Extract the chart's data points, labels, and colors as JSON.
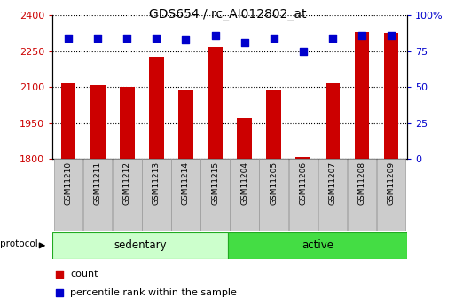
{
  "title": "GDS654 / rc_AI012802_at",
  "samples": [
    "GSM11210",
    "GSM11211",
    "GSM11212",
    "GSM11213",
    "GSM11214",
    "GSM11215",
    "GSM11204",
    "GSM11205",
    "GSM11206",
    "GSM11207",
    "GSM11208",
    "GSM11209"
  ],
  "counts": [
    2117,
    2108,
    2100,
    2228,
    2090,
    2268,
    1973,
    2088,
    1808,
    2117,
    2330,
    2328
  ],
  "percentile_ranks": [
    84,
    84,
    84,
    84,
    83,
    86,
    81,
    84,
    75,
    84,
    86,
    86
  ],
  "groups": [
    "sedentary",
    "sedentary",
    "sedentary",
    "sedentary",
    "sedentary",
    "sedentary",
    "active",
    "active",
    "active",
    "active",
    "active",
    "active"
  ],
  "ylim_left": [
    1800,
    2400
  ],
  "ylim_right": [
    0,
    100
  ],
  "yticks_left": [
    1800,
    1950,
    2100,
    2250,
    2400
  ],
  "yticks_right": [
    0,
    25,
    50,
    75,
    100
  ],
  "bar_color": "#cc0000",
  "dot_color": "#0000cc",
  "sedentary_color": "#ccffcc",
  "active_color": "#44dd44",
  "group_border_color": "#22aa22",
  "tick_label_color_left": "#cc0000",
  "tick_label_color_right": "#0000cc",
  "bar_width": 0.5,
  "dot_size": 35,
  "legend_count_color": "#cc0000",
  "legend_pct_color": "#0000cc",
  "sample_box_color": "#cccccc",
  "sample_box_edge": "#999999"
}
